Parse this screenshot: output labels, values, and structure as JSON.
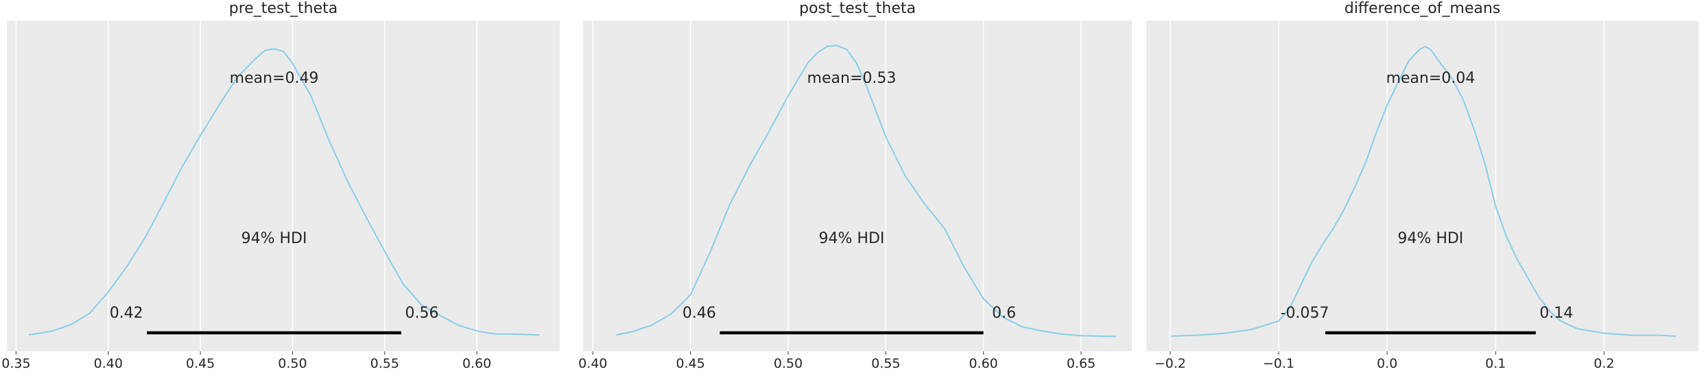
{
  "chart_data": [
    {
      "type": "density",
      "title": "pre_test_theta",
      "color": "#87ceeb",
      "xlim": [
        0.345,
        0.645
      ],
      "ticks": [
        0.35,
        0.4,
        0.45,
        0.5,
        0.55,
        0.6
      ],
      "tick_labels": [
        "0.35",
        "0.40",
        "0.45",
        "0.50",
        "0.55",
        "0.60"
      ],
      "mean_label": "mean=0.49",
      "hdi_label": "94% HDI",
      "hdi": [
        0.421,
        0.559
      ],
      "hdi_low_label": "0.42",
      "hdi_high_label": "0.56",
      "density": {
        "x": [
          0.357,
          0.37,
          0.38,
          0.39,
          0.4,
          0.41,
          0.42,
          0.43,
          0.44,
          0.45,
          0.46,
          0.47,
          0.48,
          0.485,
          0.49,
          0.495,
          0.5,
          0.51,
          0.52,
          0.53,
          0.54,
          0.55,
          0.56,
          0.57,
          0.58,
          0.59,
          0.6,
          0.61,
          0.62,
          0.634
        ],
        "y": [
          0.5,
          1.0,
          1.8,
          3.2,
          5.8,
          8.9,
          12.5,
          16.8,
          21.2,
          25.1,
          28.8,
          32.3,
          34.6,
          35.6,
          35.8,
          35.5,
          34.0,
          30.0,
          24.4,
          19.4,
          15.0,
          10.8,
          6.8,
          4.2,
          2.9,
          1.7,
          1.0,
          0.6,
          0.6,
          0.5
        ],
        "ymax": 37.6
      }
    },
    {
      "type": "density",
      "title": "post_test_theta",
      "color": "#87ceeb",
      "xlim": [
        0.395,
        0.676
      ],
      "ticks": [
        0.4,
        0.45,
        0.5,
        0.55,
        0.6,
        0.65
      ],
      "tick_labels": [
        "0.40",
        "0.45",
        "0.50",
        "0.55",
        "0.60",
        "0.65"
      ],
      "mean_label": "mean=0.53",
      "hdi_label": "94% HDI",
      "hdi": [
        0.465,
        0.6
      ],
      "hdi_low_label": "0.46",
      "hdi_high_label": "0.6",
      "density": {
        "x": [
          0.412,
          0.42,
          0.43,
          0.44,
          0.45,
          0.46,
          0.47,
          0.48,
          0.49,
          0.5,
          0.51,
          0.515,
          0.52,
          0.525,
          0.53,
          0.535,
          0.54,
          0.55,
          0.56,
          0.57,
          0.58,
          0.59,
          0.6,
          0.61,
          0.62,
          0.63,
          0.64,
          0.65,
          0.668
        ],
        "y": [
          0.5,
          0.9,
          1.7,
          3.1,
          5.5,
          10.8,
          16.7,
          21.5,
          25.8,
          30.3,
          34.4,
          35.7,
          36.5,
          36.6,
          36.1,
          34.4,
          31.6,
          25.2,
          20.3,
          16.8,
          13.8,
          9.0,
          5.0,
          2.7,
          1.5,
          1.0,
          0.6,
          0.4,
          0.3
        ],
        "ymax": 38.0
      }
    },
    {
      "type": "density",
      "title": "difference_of_means",
      "color": "#87ceeb",
      "xlim": [
        -0.222,
        0.287
      ],
      "ticks": [
        -0.2,
        -0.1,
        0.0,
        0.1,
        0.2
      ],
      "tick_labels": [
        "−0.2",
        "−0.1",
        "0.0",
        "0.1",
        "0.2"
      ],
      "mean_label": "mean=0.04",
      "hdi_label": "94% HDI",
      "hdi": [
        -0.057,
        0.137
      ],
      "hdi_low_label": "-0.057",
      "hdi_high_label": "0.14",
      "density": {
        "x": [
          -0.199,
          -0.175,
          -0.15,
          -0.125,
          -0.1,
          -0.09,
          -0.08,
          -0.07,
          -0.06,
          -0.05,
          -0.04,
          -0.03,
          -0.02,
          -0.01,
          0.0,
          0.01,
          0.02,
          0.03,
          0.035,
          0.04,
          0.05,
          0.06,
          0.07,
          0.08,
          0.09,
          0.1,
          0.11,
          0.12,
          0.13,
          0.14,
          0.15,
          0.16,
          0.175,
          0.2,
          0.225,
          0.25,
          0.266
        ],
        "y": [
          0.3,
          0.4,
          0.6,
          1.0,
          1.9,
          3.2,
          5.6,
          8.0,
          9.9,
          11.6,
          13.6,
          16.0,
          18.6,
          21.8,
          24.7,
          27.1,
          29.4,
          30.6,
          30.9,
          30.6,
          29.0,
          27.5,
          25.3,
          22.2,
          18.6,
          14.0,
          10.8,
          8.4,
          6.4,
          4.4,
          2.9,
          1.9,
          1.1,
          0.6,
          0.4,
          0.4,
          0.3
        ],
        "ymax": 32.2
      }
    }
  ]
}
